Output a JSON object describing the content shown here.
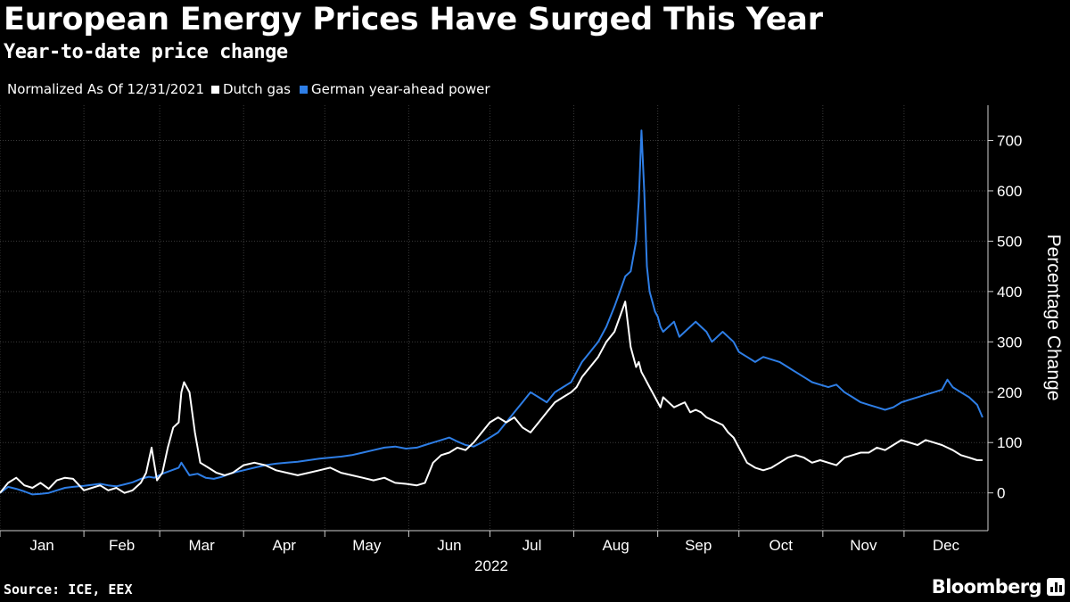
{
  "header": {
    "title": "European Energy Prices Have Surged This Year",
    "subtitle": "Year-to-date price change"
  },
  "legend": {
    "note": "Normalized As Of 12/31/2021",
    "items": [
      {
        "label": "Dutch gas",
        "color": "#ffffff"
      },
      {
        "label": "German year-ahead power",
        "color": "#2e7ee6"
      }
    ]
  },
  "footer": {
    "source": "Source: ICE, EEX",
    "brand": "Bloomberg",
    "brand_icon": "bar-chart-icon"
  },
  "chart_data": {
    "type": "line",
    "title": "European Energy Prices Have Surged This Year",
    "subtitle": "Year-to-date price change",
    "xlabel": "2022",
    "ylabel": "Percentage Change",
    "ylim": [
      -75,
      770
    ],
    "yticks": [
      0,
      100,
      200,
      300,
      400,
      500,
      600,
      700
    ],
    "xlim": [
      0,
      365
    ],
    "month_labels": [
      "Jan",
      "Feb",
      "Mar",
      "Apr",
      "May",
      "Jun",
      "Jul",
      "Aug",
      "Sep",
      "Oct",
      "Nov",
      "Dec"
    ],
    "month_boundaries": [
      0,
      31,
      59,
      90,
      120,
      151,
      181,
      212,
      243,
      273,
      304,
      334
    ],
    "grid": true,
    "series": [
      {
        "name": "German year-ahead power",
        "color": "#2e7ee6",
        "x": [
          0,
          3,
          6,
          9,
          12,
          15,
          18,
          21,
          24,
          27,
          31,
          34,
          37,
          40,
          43,
          46,
          49,
          52,
          55,
          57,
          60,
          63,
          66,
          67,
          70,
          73,
          76,
          79,
          82,
          86,
          90,
          94,
          98,
          102,
          106,
          110,
          114,
          118,
          122,
          126,
          130,
          134,
          138,
          142,
          146,
          150,
          154,
          157,
          160,
          163,
          166,
          169,
          172,
          175,
          178,
          181,
          184,
          187,
          190,
          193,
          196,
          199,
          202,
          205,
          208,
          211,
          213,
          215,
          218,
          221,
          224,
          227,
          229,
          231,
          233,
          235,
          236,
          237,
          238,
          239,
          240,
          241,
          242,
          243,
          244,
          245,
          247,
          249,
          251,
          253,
          255,
          257,
          259,
          261,
          263,
          265,
          267,
          269,
          271,
          273,
          276,
          279,
          282,
          285,
          288,
          291,
          294,
          297,
          300,
          303,
          306,
          309,
          312,
          315,
          318,
          321,
          324,
          327,
          330,
          333,
          336,
          339,
          342,
          345,
          348,
          350,
          352,
          355,
          358,
          361,
          363
        ],
        "values": [
          0,
          12,
          8,
          3,
          -3,
          -2,
          0,
          5,
          10,
          12,
          14,
          16,
          18,
          15,
          13,
          17,
          21,
          28,
          32,
          30,
          38,
          44,
          50,
          60,
          35,
          38,
          30,
          28,
          32,
          40,
          45,
          50,
          55,
          58,
          60,
          62,
          65,
          68,
          70,
          72,
          75,
          80,
          85,
          90,
          92,
          88,
          90,
          95,
          100,
          105,
          110,
          102,
          95,
          92,
          100,
          110,
          120,
          140,
          160,
          180,
          200,
          190,
          180,
          200,
          210,
          220,
          240,
          260,
          280,
          300,
          330,
          370,
          400,
          430,
          440,
          500,
          580,
          720,
          600,
          450,
          400,
          380,
          360,
          350,
          330,
          320,
          330,
          340,
          310,
          320,
          330,
          340,
          330,
          320,
          300,
          310,
          320,
          310,
          300,
          280,
          270,
          260,
          270,
          265,
          260,
          250,
          240,
          230,
          220,
          215,
          210,
          215,
          200,
          190,
          180,
          175,
          170,
          165,
          170,
          180,
          185,
          190,
          195,
          200,
          205,
          225,
          210,
          200,
          190,
          175,
          150
        ]
      },
      {
        "name": "Dutch gas",
        "color": "#ffffff",
        "x": [
          0,
          3,
          6,
          9,
          12,
          15,
          18,
          21,
          24,
          27,
          31,
          34,
          37,
          40,
          43,
          46,
          49,
          52,
          54,
          56,
          58,
          60,
          62,
          64,
          66,
          67,
          68,
          70,
          72,
          74,
          77,
          80,
          83,
          86,
          90,
          94,
          98,
          102,
          106,
          110,
          114,
          118,
          122,
          126,
          130,
          134,
          138,
          142,
          146,
          150,
          154,
          157,
          160,
          163,
          166,
          169,
          172,
          175,
          178,
          181,
          184,
          187,
          190,
          193,
          196,
          199,
          202,
          205,
          208,
          211,
          213,
          215,
          218,
          221,
          224,
          227,
          229,
          231,
          233,
          235,
          236,
          237,
          238,
          239,
          240,
          241,
          242,
          243,
          244,
          245,
          247,
          249,
          251,
          253,
          255,
          257,
          259,
          261,
          263,
          265,
          267,
          269,
          271,
          273,
          276,
          279,
          282,
          285,
          288,
          291,
          294,
          297,
          300,
          303,
          306,
          309,
          312,
          315,
          318,
          321,
          324,
          327,
          330,
          333,
          336,
          339,
          342,
          345,
          348,
          350,
          352,
          355,
          358,
          361,
          363
        ],
        "values": [
          0,
          20,
          30,
          15,
          10,
          20,
          8,
          25,
          30,
          28,
          5,
          10,
          15,
          5,
          10,
          0,
          5,
          20,
          40,
          90,
          25,
          40,
          90,
          130,
          140,
          200,
          220,
          200,
          120,
          60,
          50,
          40,
          35,
          40,
          55,
          60,
          55,
          45,
          40,
          35,
          40,
          45,
          50,
          40,
          35,
          30,
          25,
          30,
          20,
          18,
          15,
          20,
          60,
          75,
          80,
          90,
          85,
          100,
          120,
          140,
          150,
          140,
          150,
          130,
          120,
          140,
          160,
          180,
          190,
          200,
          210,
          230,
          250,
          270,
          300,
          320,
          350,
          380,
          290,
          250,
          260,
          240,
          230,
          220,
          210,
          200,
          190,
          180,
          170,
          190,
          180,
          170,
          175,
          180,
          160,
          165,
          160,
          150,
          145,
          140,
          135,
          120,
          110,
          90,
          60,
          50,
          45,
          50,
          60,
          70,
          75,
          70,
          60,
          65,
          60,
          55,
          70,
          75,
          80,
          80,
          90,
          85,
          95,
          105,
          100,
          95,
          105,
          100,
          95,
          90,
          85,
          75,
          70,
          65,
          65
        ]
      }
    ]
  }
}
